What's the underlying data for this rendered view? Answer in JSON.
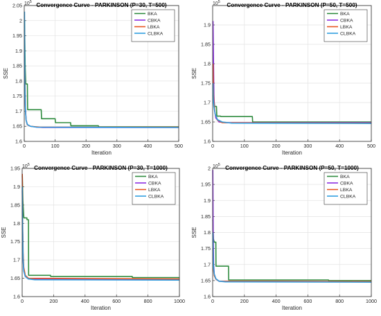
{
  "chart_data": [
    {
      "type": "line",
      "title": "Convergence Curve - PARKINSON (P=30, T=500)",
      "xlabel": "Iteration",
      "ylabel": "SSE",
      "exponent": "10^5",
      "xlim": [
        0,
        500
      ],
      "ylim": [
        1.6,
        2.05
      ],
      "xticks": [
        "0",
        "100",
        "200",
        "300",
        "400",
        "500"
      ],
      "yticks": [
        "1.6",
        "1.65",
        "1.7",
        "1.75",
        "1.8",
        "1.85",
        "1.9",
        "1.95",
        "2",
        "2.05"
      ],
      "grid": true,
      "legend_position": "top-right",
      "series": [
        {
          "name": "BKA",
          "color": "#2e8b3e",
          "x": [
            1,
            3,
            5,
            6,
            10,
            11,
            55,
            56,
            100,
            101,
            150,
            151,
            240,
            241,
            500
          ],
          "y": [
            2.0,
            1.85,
            1.79,
            1.79,
            1.79,
            1.705,
            1.705,
            1.675,
            1.675,
            1.662,
            1.662,
            1.652,
            1.652,
            1.648,
            1.648
          ]
        },
        {
          "name": "CBKA",
          "color": "#8a2be2",
          "x": [
            1,
            3,
            6,
            10,
            20,
            40,
            60,
            500
          ],
          "y": [
            1.9,
            1.73,
            1.67,
            1.655,
            1.65,
            1.647,
            1.646,
            1.646
          ]
        },
        {
          "name": "LBKA",
          "color": "#e8531f",
          "x": [
            1,
            2,
            4,
            6,
            10,
            20,
            50,
            500
          ],
          "y": [
            1.97,
            1.82,
            1.7,
            1.67,
            1.655,
            1.65,
            1.647,
            1.647
          ]
        },
        {
          "name": "CLBKA",
          "color": "#2f9fe0",
          "x": [
            1,
            2,
            4,
            6,
            10,
            20,
            40,
            500
          ],
          "y": [
            2.03,
            1.79,
            1.7,
            1.67,
            1.656,
            1.65,
            1.647,
            1.646
          ]
        }
      ]
    },
    {
      "type": "line",
      "title": "Convergence Curve - PARKINSON (P=50, T=500)",
      "xlabel": "Iteration",
      "ylabel": "SSE",
      "exponent": "10^5",
      "xlim": [
        0,
        500
      ],
      "ylim": [
        1.6,
        1.95
      ],
      "xticks": [
        "0",
        "100",
        "200",
        "300",
        "400",
        "500"
      ],
      "yticks": [
        "1.6",
        "1.65",
        "1.7",
        "1.75",
        "1.8",
        "1.85",
        "1.9"
      ],
      "grid": true,
      "legend_position": "top-right",
      "series": [
        {
          "name": "BKA",
          "color": "#2e8b3e",
          "x": [
            1,
            3,
            5,
            6,
            12,
            13,
            25,
            26,
            125,
            126,
            500
          ],
          "y": [
            1.72,
            1.7,
            1.7,
            1.69,
            1.69,
            1.665,
            1.665,
            1.664,
            1.664,
            1.65,
            1.65
          ]
        },
        {
          "name": "CBKA",
          "color": "#8a2be2",
          "x": [
            1,
            2,
            4,
            6,
            10,
            20,
            40,
            500
          ],
          "y": [
            1.91,
            1.85,
            1.72,
            1.68,
            1.66,
            1.65,
            1.648,
            1.648
          ]
        },
        {
          "name": "LBKA",
          "color": "#e8531f",
          "x": [
            1,
            2,
            4,
            8,
            15,
            30,
            500
          ],
          "y": [
            1.8,
            1.74,
            1.7,
            1.67,
            1.655,
            1.648,
            1.647
          ]
        },
        {
          "name": "CLBKA",
          "color": "#2f9fe0",
          "x": [
            1,
            2,
            4,
            8,
            15,
            30,
            60,
            500
          ],
          "y": [
            1.75,
            1.71,
            1.69,
            1.67,
            1.656,
            1.65,
            1.647,
            1.646
          ]
        }
      ]
    },
    {
      "type": "line",
      "title": "Convergence Curve - PARKINSON (P=30, T=1000)",
      "xlabel": "Iteration",
      "ylabel": "SSE",
      "exponent": "10^5",
      "xlim": [
        0,
        1000
      ],
      "ylim": [
        1.6,
        1.95
      ],
      "xticks": [
        "0",
        "200",
        "400",
        "600",
        "800",
        "1000"
      ],
      "yticks": [
        "1.6",
        "1.65",
        "1.7",
        "1.75",
        "1.8",
        "1.85",
        "1.9",
        "1.95"
      ],
      "grid": true,
      "legend_position": "top-right",
      "series": [
        {
          "name": "BKA",
          "color": "#2e8b3e",
          "x": [
            1,
            5,
            10,
            11,
            30,
            31,
            40,
            41,
            180,
            181,
            700,
            701,
            1000
          ],
          "y": [
            1.93,
            1.86,
            1.82,
            1.815,
            1.815,
            1.81,
            1.81,
            1.658,
            1.658,
            1.655,
            1.655,
            1.652,
            1.652
          ]
        },
        {
          "name": "CBKA",
          "color": "#8a2be2",
          "x": [
            1,
            3,
            6,
            10,
            20,
            40,
            1000
          ],
          "y": [
            1.89,
            1.78,
            1.7,
            1.67,
            1.655,
            1.648,
            1.647
          ]
        },
        {
          "name": "LBKA",
          "color": "#e8531f",
          "x": [
            1,
            3,
            6,
            10,
            20,
            40,
            1000
          ],
          "y": [
            1.935,
            1.8,
            1.72,
            1.68,
            1.658,
            1.65,
            1.648
          ]
        },
        {
          "name": "CLBKA",
          "color": "#2f9fe0",
          "x": [
            1,
            3,
            6,
            10,
            20,
            40,
            80,
            1000
          ],
          "y": [
            1.9,
            1.78,
            1.7,
            1.67,
            1.655,
            1.648,
            1.646,
            1.645
          ]
        }
      ]
    },
    {
      "type": "line",
      "title": "Convergence Curve - PARKINSON (P=50, T=1000)",
      "xlabel": "Iteration",
      "ylabel": "SSE",
      "exponent": "10^5",
      "xlim": [
        0,
        1000
      ],
      "ylim": [
        1.6,
        2.0
      ],
      "xticks": [
        "0",
        "200",
        "400",
        "600",
        "800",
        "1000"
      ],
      "yticks": [
        "1.6",
        "1.65",
        "1.7",
        "1.75",
        "1.8",
        "1.85",
        "1.9",
        "1.95",
        "2"
      ],
      "grid": true,
      "legend_position": "top-right",
      "series": [
        {
          "name": "BKA",
          "color": "#2e8b3e",
          "x": [
            1,
            5,
            10,
            20,
            21,
            45,
            46,
            100,
            101,
            730,
            731,
            1000
          ],
          "y": [
            1.84,
            1.78,
            1.77,
            1.77,
            1.695,
            1.695,
            1.695,
            1.695,
            1.652,
            1.652,
            1.65,
            1.65
          ]
        },
        {
          "name": "CBKA",
          "color": "#8a2be2",
          "x": [
            1,
            3,
            6,
            10,
            20,
            40,
            1000
          ],
          "y": [
            1.995,
            1.8,
            1.7,
            1.67,
            1.655,
            1.648,
            1.647
          ]
        },
        {
          "name": "LBKA",
          "color": "#e8531f",
          "x": [
            1,
            3,
            6,
            10,
            20,
            40,
            1000
          ],
          "y": [
            1.75,
            1.7,
            1.68,
            1.665,
            1.655,
            1.648,
            1.647
          ]
        },
        {
          "name": "CLBKA",
          "color": "#2f9fe0",
          "x": [
            1,
            3,
            6,
            10,
            20,
            40,
            80,
            1000
          ],
          "y": [
            1.8,
            1.72,
            1.69,
            1.67,
            1.656,
            1.648,
            1.646,
            1.645
          ]
        }
      ]
    }
  ]
}
